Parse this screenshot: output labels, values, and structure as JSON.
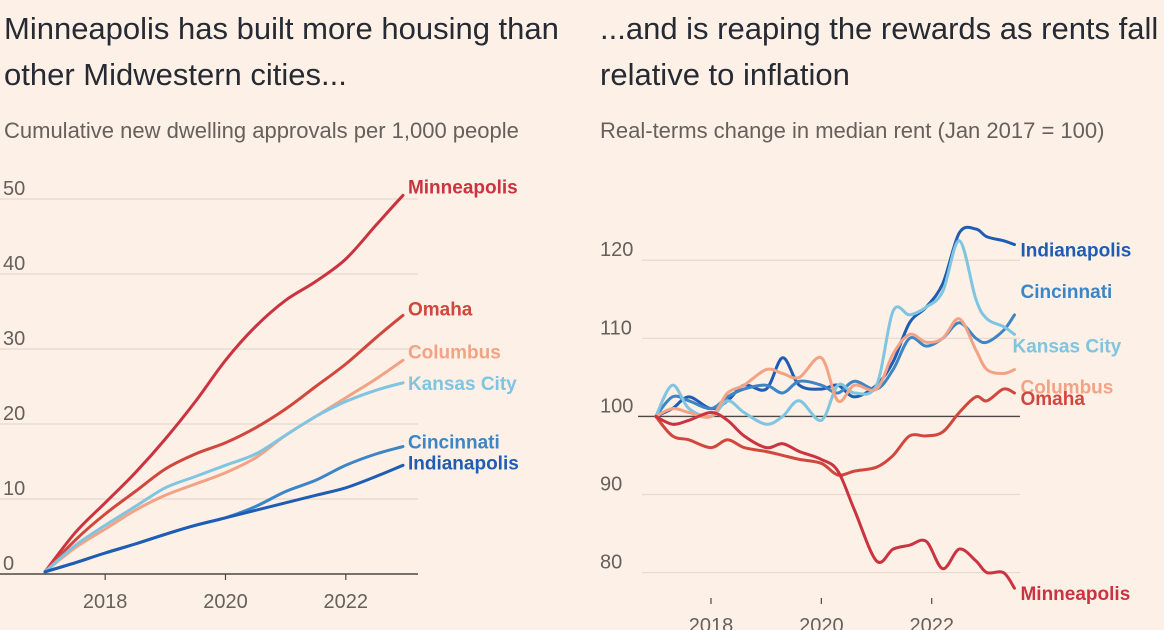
{
  "chart_data": [
    {
      "type": "line",
      "title": "Minneapolis has built more housing than other Midwestern cities...",
      "subtitle": "Cumulative new dwelling approvals per 1,000 people",
      "xlim": [
        2017,
        2023.2
      ],
      "ylim": [
        0,
        52
      ],
      "x_ticks": [
        {
          "value": 2018,
          "label": "2018"
        },
        {
          "value": 2020,
          "label": "2020"
        },
        {
          "value": 2022,
          "label": "2022"
        }
      ],
      "y_ticks": [
        {
          "value": 0,
          "label": "0"
        },
        {
          "value": 10,
          "label": "10"
        },
        {
          "value": 20,
          "label": "20"
        },
        {
          "value": 30,
          "label": "30"
        },
        {
          "value": 40,
          "label": "40"
        },
        {
          "value": 50,
          "label": "50"
        }
      ],
      "grid": true,
      "series": [
        {
          "name": "Minneapolis",
          "color": "#cc3340",
          "x": [
            2017,
            2017.5,
            2018,
            2018.5,
            2019,
            2019.5,
            2020,
            2020.5,
            2021,
            2021.5,
            2022,
            2022.5,
            2022.95
          ],
          "y": [
            0.3,
            5.5,
            9.5,
            13.5,
            18,
            23,
            28.5,
            33,
            36.5,
            39,
            42,
            46.5,
            50.5
          ]
        },
        {
          "name": "Omaha",
          "color": "#d1473e",
          "x": [
            2017,
            2017.5,
            2018,
            2018.5,
            2019,
            2019.5,
            2020,
            2020.5,
            2021,
            2021.5,
            2022,
            2022.5,
            2022.95
          ],
          "y": [
            0.3,
            4.5,
            8,
            11,
            14,
            16,
            17.5,
            19.5,
            22,
            25,
            28,
            31.5,
            34.5
          ]
        },
        {
          "name": "Columbus",
          "color": "#f2a385",
          "x": [
            2017,
            2017.5,
            2018,
            2018.5,
            2019,
            2019.5,
            2020,
            2020.5,
            2021,
            2021.5,
            2022,
            2022.5,
            2022.95
          ],
          "y": [
            0.3,
            3.5,
            6,
            8.5,
            10.5,
            12,
            13.5,
            15.5,
            18.5,
            21,
            23.5,
            26,
            28.5
          ]
        },
        {
          "name": "Kansas City",
          "color": "#7fc4e0",
          "x": [
            2017,
            2017.5,
            2018,
            2018.5,
            2019,
            2019.5,
            2020,
            2020.5,
            2021,
            2021.5,
            2022,
            2022.5,
            2022.95
          ],
          "y": [
            0.3,
            3.8,
            6.5,
            9,
            11.5,
            13,
            14.5,
            16,
            18.5,
            21,
            23,
            24.5,
            25.5
          ]
        },
        {
          "name": "Cincinnati",
          "color": "#3d85c6",
          "x": [
            2017,
            2017.5,
            2018,
            2018.5,
            2019,
            2019.5,
            2020,
            2020.5,
            2021,
            2021.5,
            2022,
            2022.5,
            2022.95
          ],
          "y": [
            0.3,
            1.5,
            2.8,
            4,
            5.3,
            6.5,
            7.5,
            9,
            11,
            12.5,
            14.5,
            16,
            17
          ]
        },
        {
          "name": "Indianapolis",
          "color": "#1f5cb3",
          "x": [
            2017,
            2017.5,
            2018,
            2018.5,
            2019,
            2019.5,
            2020,
            2020.5,
            2021,
            2021.5,
            2022,
            2022.5,
            2022.95
          ],
          "y": [
            0.3,
            1.5,
            2.8,
            4,
            5.3,
            6.5,
            7.5,
            8.5,
            9.5,
            10.5,
            11.5,
            13,
            14.5
          ]
        }
      ]
    },
    {
      "type": "line",
      "title": "...and is reaping the rewards as rents fall relative to inflation",
      "subtitle": "Real-terms change in median rent (Jan 2017 = 100)",
      "xlim": [
        2016.75,
        2023.6
      ],
      "ylim": [
        77,
        124
      ],
      "x_ticks": [
        {
          "value": 2018,
          "label": "2018"
        },
        {
          "value": 2020,
          "label": "2020"
        },
        {
          "value": 2022,
          "label": "2022"
        }
      ],
      "y_ticks": [
        {
          "value": 80,
          "label": "80"
        },
        {
          "value": 90,
          "label": "90"
        },
        {
          "value": 100,
          "label": "100"
        },
        {
          "value": 110,
          "label": "110"
        },
        {
          "value": 120,
          "label": "120"
        }
      ],
      "grid": true,
      "reference_line": 100,
      "series": [
        {
          "name": "Indianapolis",
          "color": "#1f5cb3",
          "x": [
            2017,
            2017.3,
            2017.6,
            2018,
            2018.3,
            2018.6,
            2019,
            2019.3,
            2019.6,
            2020,
            2020.3,
            2020.6,
            2021,
            2021.3,
            2021.6,
            2021.9,
            2022.2,
            2022.5,
            2022.8,
            2023,
            2023.3,
            2023.5
          ],
          "y": [
            100,
            101,
            102.5,
            101,
            102,
            104,
            103.5,
            107.5,
            104,
            103.5,
            104,
            102.5,
            104,
            107,
            112,
            114,
            117,
            123.5,
            124,
            123,
            122.5,
            122
          ]
        },
        {
          "name": "Cincinnati",
          "color": "#3d85c6",
          "x": [
            2017,
            2017.3,
            2017.6,
            2018,
            2018.3,
            2018.6,
            2019,
            2019.3,
            2019.6,
            2020,
            2020.3,
            2020.6,
            2021,
            2021.3,
            2021.6,
            2021.9,
            2022.2,
            2022.5,
            2022.8,
            2023,
            2023.3,
            2023.5
          ],
          "y": [
            100,
            102.5,
            102,
            101,
            102.5,
            103.5,
            104,
            103,
            104.5,
            104,
            103,
            104.5,
            103.5,
            106,
            110,
            109,
            110,
            112,
            110,
            109.5,
            111,
            113
          ]
        },
        {
          "name": "Kansas City",
          "color": "#7fc4e0",
          "x": [
            2017,
            2017.3,
            2017.6,
            2018,
            2018.3,
            2018.6,
            2019,
            2019.3,
            2019.6,
            2020,
            2020.3,
            2020.6,
            2021,
            2021.3,
            2021.6,
            2021.9,
            2022.2,
            2022.5,
            2022.8,
            2023,
            2023.3,
            2023.5
          ],
          "y": [
            100,
            104,
            101,
            100,
            102,
            100.5,
            99,
            100,
            102,
            99.5,
            104,
            103,
            104,
            113.5,
            113,
            114,
            116,
            122.5,
            115,
            112.5,
            111.5,
            110.5
          ]
        },
        {
          "name": "Columbus",
          "color": "#f2a385",
          "x": [
            2017,
            2017.3,
            2017.6,
            2018,
            2018.3,
            2018.6,
            2019,
            2019.3,
            2019.6,
            2020,
            2020.3,
            2020.6,
            2021,
            2021.3,
            2021.6,
            2021.9,
            2022.2,
            2022.5,
            2022.8,
            2023,
            2023.3,
            2023.5
          ],
          "y": [
            100,
            101,
            100.5,
            100,
            103,
            104,
            106,
            105.5,
            105,
            107.5,
            102,
            104,
            103.5,
            108,
            110.5,
            109.5,
            110,
            112.5,
            108.5,
            106,
            105.5,
            106
          ]
        },
        {
          "name": "Omaha",
          "color": "#d1473e",
          "x": [
            2017,
            2017.3,
            2017.6,
            2018,
            2018.3,
            2018.6,
            2019,
            2019.3,
            2019.6,
            2020,
            2020.3,
            2020.6,
            2021,
            2021.3,
            2021.6,
            2021.9,
            2022.2,
            2022.5,
            2022.8,
            2023,
            2023.3,
            2023.5
          ],
          "y": [
            100,
            97.5,
            97,
            96,
            97,
            96,
            95.5,
            95,
            94.5,
            94,
            92.5,
            93,
            93.5,
            95,
            97.5,
            97.5,
            98,
            100.5,
            102.5,
            102,
            103.5,
            103
          ]
        },
        {
          "name": "Minneapolis",
          "color": "#cc3340",
          "x": [
            2017,
            2017.3,
            2017.6,
            2018,
            2018.3,
            2018.6,
            2019,
            2019.3,
            2019.6,
            2020,
            2020.3,
            2020.6,
            2021,
            2021.3,
            2021.6,
            2021.9,
            2022.2,
            2022.5,
            2022.8,
            2023,
            2023.3,
            2023.5
          ],
          "y": [
            100,
            99,
            99.5,
            100.5,
            99.5,
            97.5,
            96,
            96.5,
            95.5,
            94.5,
            93,
            88,
            81.5,
            83,
            83.5,
            84,
            80.5,
            83,
            81.5,
            80,
            80,
            78
          ]
        }
      ]
    }
  ]
}
